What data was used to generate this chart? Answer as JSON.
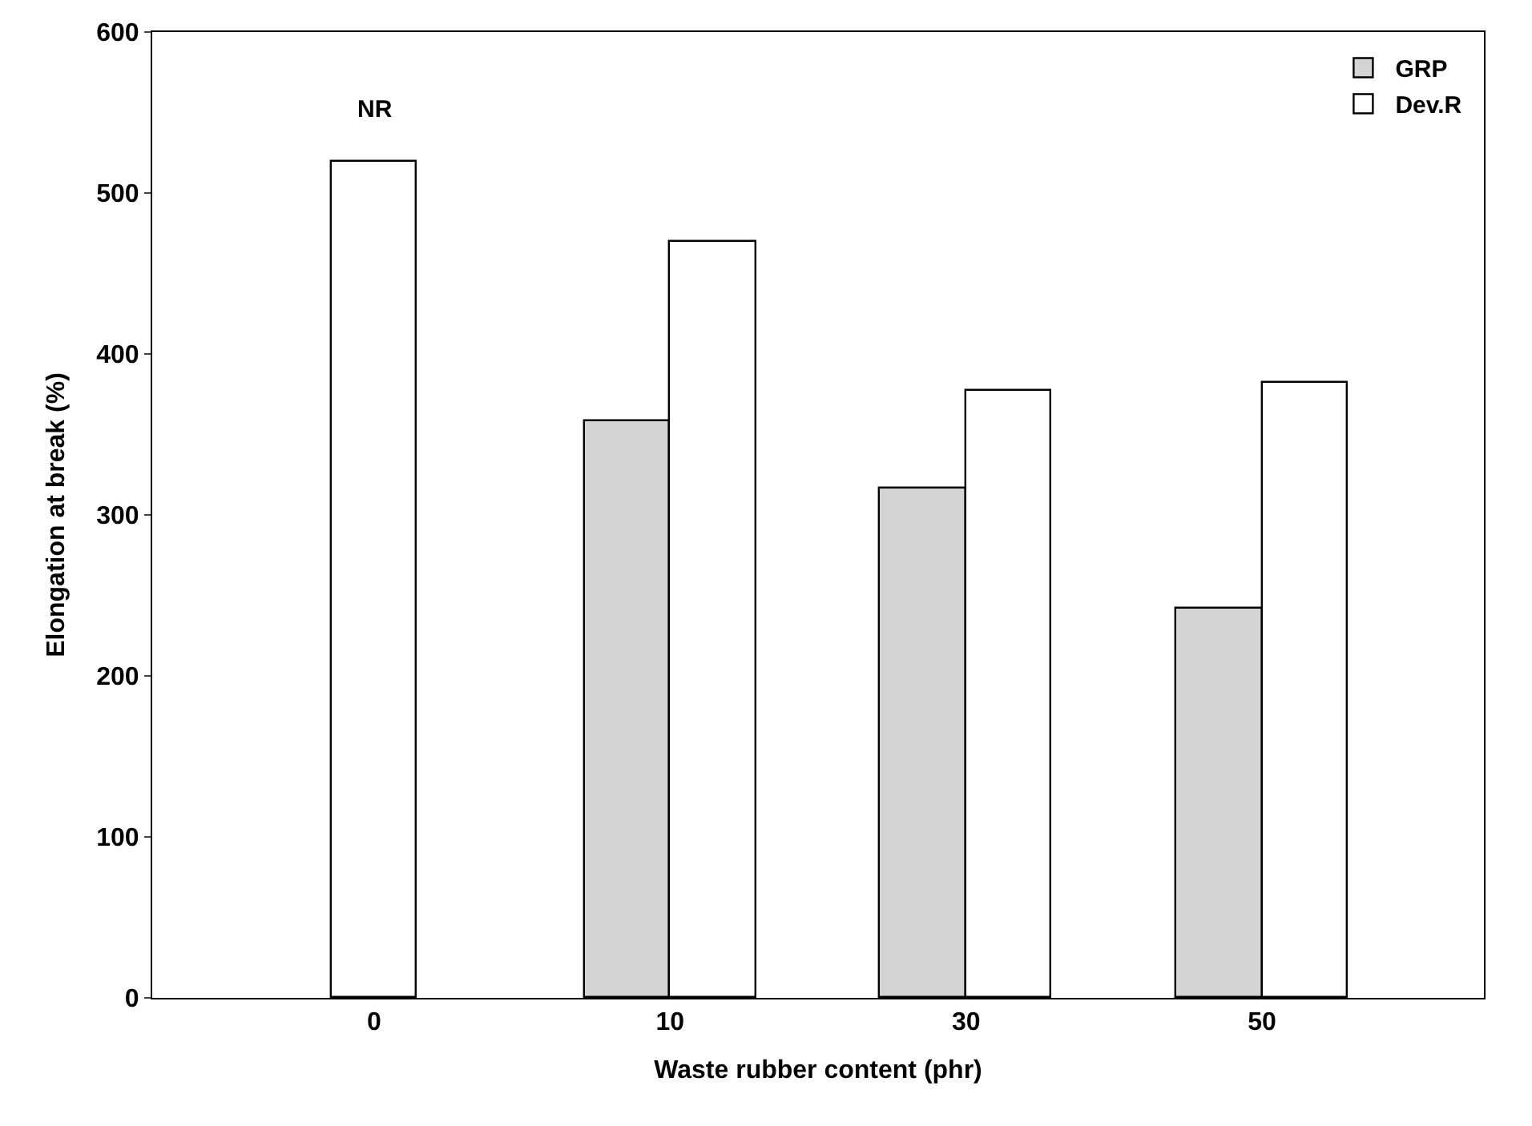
{
  "chart_data": {
    "type": "bar",
    "xlabel": "Waste rubber content (phr)",
    "ylabel": "Elongation at break (%)",
    "categories": [
      "0",
      "10",
      "30",
      "50"
    ],
    "series": [
      {
        "name": "GRP",
        "color": "#d4d4d4",
        "values": [
          null,
          358,
          316,
          242
        ]
      },
      {
        "name": "Dev.R",
        "color": "#ffffff",
        "values": [
          519,
          470,
          377,
          382
        ]
      }
    ],
    "ylim": [
      0,
      600
    ],
    "yticks": [
      0,
      100,
      200,
      300,
      400,
      500,
      600
    ],
    "legend": "top right",
    "annotations": [
      {
        "text": "NR",
        "x": "0",
        "y": 519
      }
    ]
  }
}
